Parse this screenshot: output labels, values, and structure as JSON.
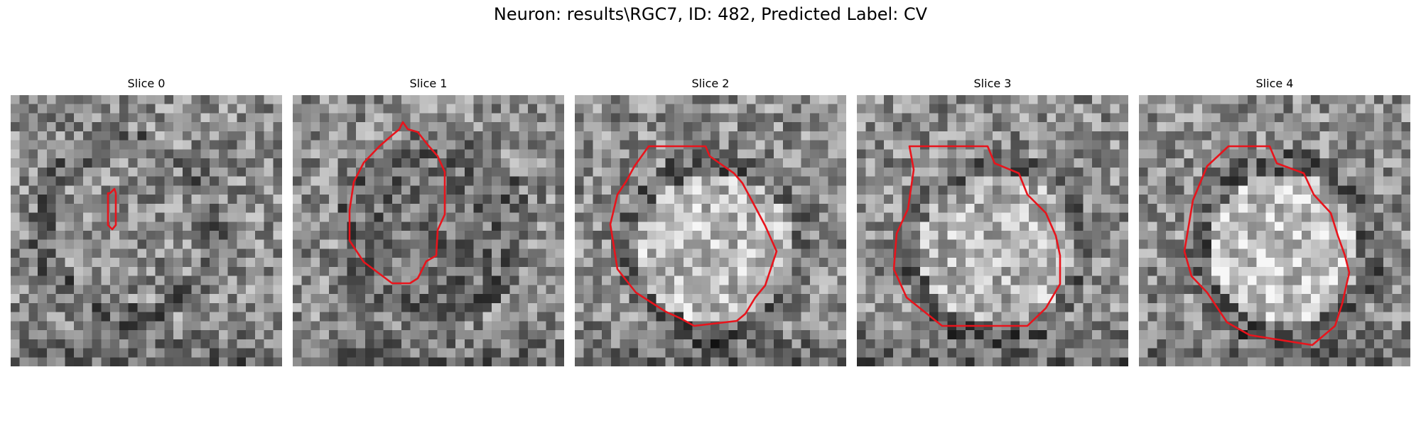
{
  "figure": {
    "title": "Neuron: results\\RGC7, ID: 482, Predicted Label: CV"
  },
  "panels": [
    {
      "title": "Slice 0"
    },
    {
      "title": "Slice 1"
    },
    {
      "title": "Slice 2"
    },
    {
      "title": "Slice 3"
    },
    {
      "title": "Slice 4"
    }
  ],
  "colors": {
    "contour": "#e8141c",
    "colormap": "gray"
  }
}
